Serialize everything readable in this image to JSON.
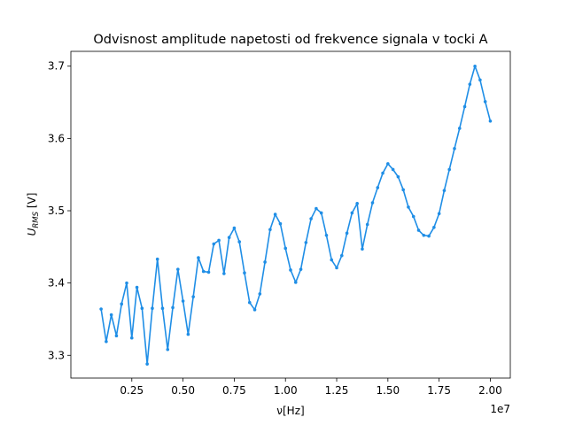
{
  "chart_data": {
    "type": "line",
    "title": "Odvisnost amplitude napetosti od frekvence signala v tocki A",
    "xlabel": "ν[Hz]",
    "ylabel": "U_RMS [V]",
    "ylabel_main": "U",
    "ylabel_sub": "RMS",
    "ylabel_unit": " [V]",
    "x_offset_label": "1e7",
    "x_scale": 10000000,
    "xlim": [
      -0.0475,
      2.0975
    ],
    "ylim": [
      3.2685,
      3.7205
    ],
    "x_ticks": [
      0.25,
      0.5,
      0.75,
      1.0,
      1.25,
      1.5,
      1.75,
      2.0
    ],
    "x_tick_labels": [
      "0.25",
      "0.50",
      "0.75",
      "1.00",
      "1.25",
      "1.50",
      "1.75",
      "2.00"
    ],
    "y_ticks": [
      3.3,
      3.4,
      3.5,
      3.6,
      3.7
    ],
    "y_tick_labels": [
      "3.3",
      "3.4",
      "3.5",
      "3.6",
      "3.7"
    ],
    "grid": false,
    "series": [
      {
        "color": "#1f8ee6",
        "x": [
          0.1,
          0.125,
          0.15,
          0.175,
          0.2,
          0.225,
          0.25,
          0.275,
          0.3,
          0.325,
          0.35,
          0.375,
          0.4,
          0.425,
          0.45,
          0.475,
          0.5,
          0.525,
          0.55,
          0.575,
          0.6,
          0.625,
          0.65,
          0.675,
          0.7,
          0.725,
          0.75,
          0.775,
          0.8,
          0.825,
          0.85,
          0.875,
          0.9,
          0.925,
          0.95,
          0.975,
          1.0,
          1.025,
          1.05,
          1.075,
          1.1,
          1.125,
          1.15,
          1.175,
          1.2,
          1.225,
          1.25,
          1.275,
          1.3,
          1.325,
          1.35,
          1.375,
          1.4,
          1.425,
          1.45,
          1.475,
          1.5,
          1.525,
          1.55,
          1.575,
          1.6,
          1.625,
          1.65,
          1.675,
          1.7,
          1.725,
          1.75,
          1.775,
          1.8,
          1.825,
          1.85,
          1.875,
          1.9,
          1.925,
          1.95,
          1.975,
          2.0
        ],
        "y": [
          3.364,
          3.319,
          3.356,
          3.327,
          3.371,
          3.4,
          3.324,
          3.394,
          3.365,
          3.288,
          3.365,
          3.433,
          3.365,
          3.308,
          3.366,
          3.419,
          3.375,
          3.329,
          3.381,
          3.435,
          3.416,
          3.415,
          3.454,
          3.459,
          3.413,
          3.463,
          3.476,
          3.457,
          3.414,
          3.373,
          3.363,
          3.385,
          3.429,
          3.474,
          3.495,
          3.482,
          3.448,
          3.418,
          3.401,
          3.419,
          3.456,
          3.489,
          3.503,
          3.497,
          3.466,
          3.432,
          3.421,
          3.438,
          3.469,
          3.497,
          3.51,
          3.447,
          3.481,
          3.511,
          3.532,
          3.552,
          3.565,
          3.557,
          3.547,
          3.529,
          3.505,
          3.492,
          3.473,
          3.466,
          3.465,
          3.477,
          3.496,
          3.528,
          3.557,
          3.586,
          3.614,
          3.644,
          3.675,
          3.7,
          3.681,
          3.651,
          3.624
        ]
      }
    ]
  }
}
